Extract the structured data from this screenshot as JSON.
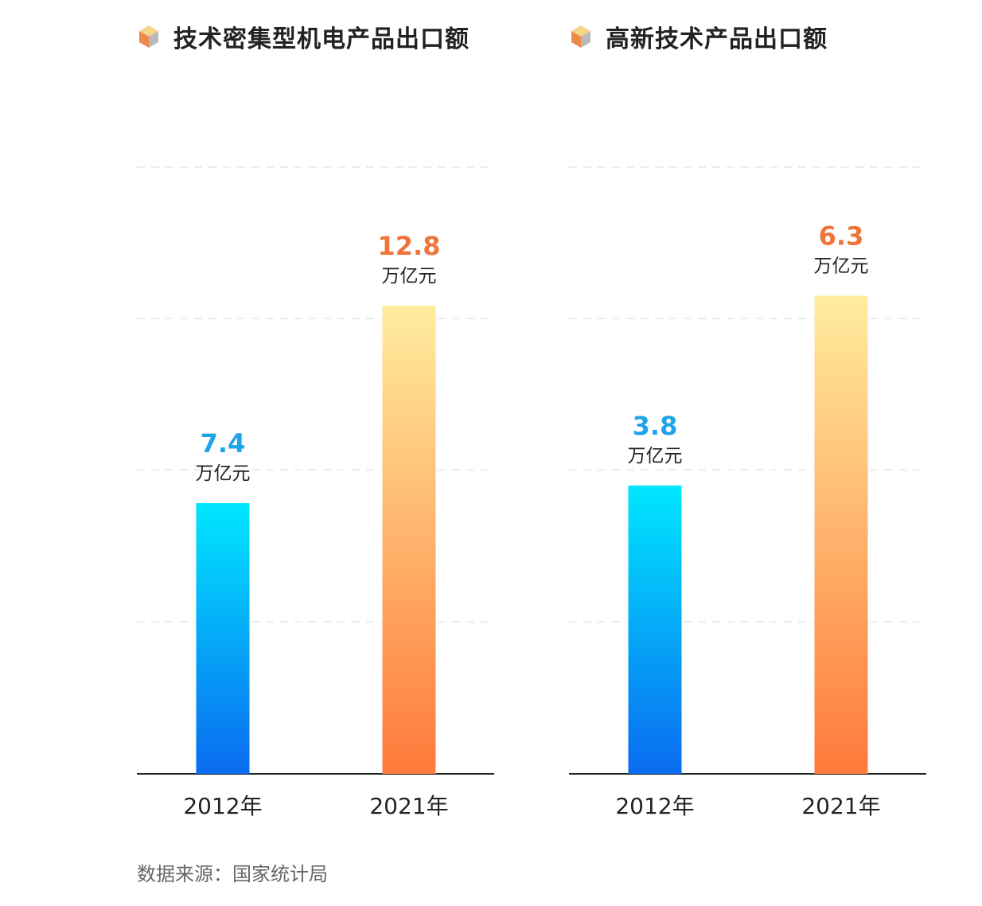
{
  "chart_data": [
    {
      "type": "bar",
      "title": "技术密集型机电产品出口额",
      "categories": [
        "2012年",
        "2021年"
      ],
      "values": [
        7.4,
        12.8
      ],
      "value_labels": [
        "7.4",
        "12.8"
      ],
      "unit_label": "万亿元",
      "ylim": [
        0,
        16.8
      ],
      "grid": true,
      "bar_colors": [
        [
          "#00e7ff",
          "#0a6bf0"
        ],
        [
          "#ffec9e",
          "#ff7a3a"
        ]
      ],
      "value_colors": [
        "#1fa3e8",
        "#f0743a"
      ]
    },
    {
      "type": "bar",
      "title": "高新技术产品出口额",
      "categories": [
        "2012年",
        "2021年"
      ],
      "values": [
        3.8,
        6.3
      ],
      "value_labels": [
        "3.8",
        "6.3"
      ],
      "unit_label": "万亿元",
      "ylim": [
        0,
        8.1
      ],
      "grid": true,
      "bar_colors": [
        [
          "#00e7ff",
          "#0a6bf0"
        ],
        [
          "#ffec9e",
          "#ff7a3a"
        ]
      ],
      "value_colors": [
        "#1fa3e8",
        "#f0743a"
      ]
    }
  ],
  "source": "数据来源：国家统计局",
  "icon": "hexagon-cube-icon",
  "colors": {
    "icon_orange": "#f0884a",
    "icon_yellow": "#f7d58b",
    "icon_grey": "#b9b9b9",
    "axis": "#222222",
    "grid": "#e6e6e6"
  }
}
